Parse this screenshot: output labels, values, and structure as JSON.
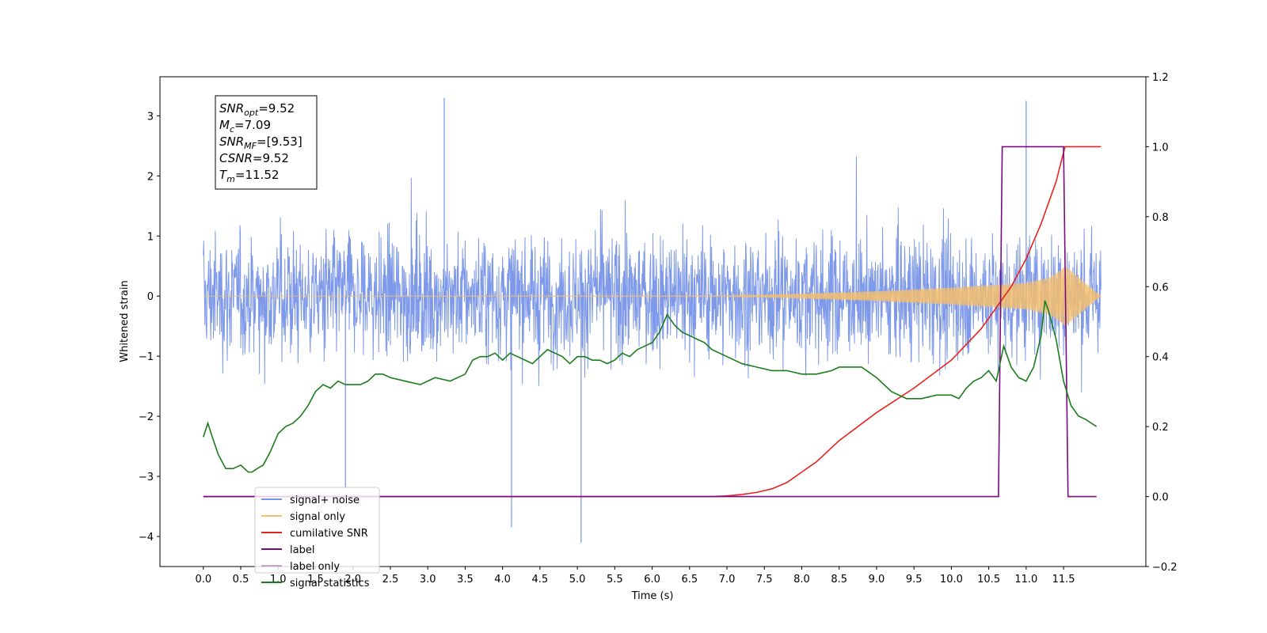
{
  "chart_data": {
    "type": "line",
    "xlabel": "Time (s)",
    "ylabel": "Whitened strain",
    "xlim": [
      -0.58,
      12.6
    ],
    "ylim": [
      -4.5,
      3.65
    ],
    "y2lim": [
      -0.2,
      1.2
    ],
    "x_ticks": [
      "0.0",
      "0.5",
      "1.0",
      "1.5",
      "2.0",
      "2.5",
      "3.0",
      "3.5",
      "4.0",
      "4.5",
      "5.0",
      "5.5",
      "6.0",
      "6.5",
      "7.0",
      "7.5",
      "8.0",
      "8.5",
      "9.0",
      "9.5",
      "10.0",
      "10.5",
      "11.0",
      "11.5"
    ],
    "y_ticks": [
      "3",
      "2",
      "1",
      "0",
      "−1",
      "−2",
      "−3",
      "−4"
    ],
    "y2_ticks": [
      "1.2",
      "1.0",
      "0.8",
      "0.6",
      "0.4",
      "0.2",
      "0.0",
      "−0.2"
    ],
    "grid": false,
    "legend_position": "lower-left",
    "annotation": {
      "lines": [
        {
          "base": "SNR",
          "sub": "opt",
          "value": "=9.52"
        },
        {
          "base": "M",
          "sub": "c",
          "value": "=7.09"
        },
        {
          "base": "SNR",
          "sub": "MF",
          "value": "=[9.53]"
        },
        {
          "base": "CSNR",
          "sub": "",
          "value": "=9.52"
        },
        {
          "base": "T",
          "sub": "m",
          "value": "=11.52"
        }
      ]
    },
    "series": [
      {
        "name": "signal+ noise",
        "color": "#7793e8",
        "axis": "left",
        "noise": {
          "x_start": 0.0,
          "x_end": 12.0,
          "typical_amplitude": 1.3,
          "min": -4.1,
          "max": 3.3
        },
        "peaks": [
          [
            3.22,
            3.3
          ],
          [
            11.0,
            3.25
          ],
          [
            5.05,
            -4.1
          ],
          [
            4.12,
            -3.85
          ],
          [
            1.9,
            -3.2
          ]
        ]
      },
      {
        "name": "signal only",
        "color": "#f5be6c",
        "axis": "left",
        "envelope": {
          "x": [
            0.0,
            7.0,
            8.0,
            9.0,
            10.0,
            10.5,
            11.0,
            11.3,
            11.45,
            11.52,
            12.0
          ],
          "amp": [
            0.0,
            0.005,
            0.04,
            0.08,
            0.14,
            0.18,
            0.22,
            0.3,
            0.42,
            0.5,
            0.0
          ]
        }
      },
      {
        "name": "cumilative SNR",
        "color": "#e8231f",
        "axis": "right",
        "x": [
          0.0,
          6.8,
          7.0,
          7.2,
          7.4,
          7.6,
          7.8,
          8.0,
          8.2,
          8.5,
          9.0,
          9.5,
          10.0,
          10.4,
          10.8,
          11.0,
          11.2,
          11.4,
          11.52,
          12.0
        ],
        "y": [
          0.0,
          0.0,
          0.002,
          0.006,
          0.012,
          0.022,
          0.04,
          0.07,
          0.1,
          0.16,
          0.24,
          0.31,
          0.39,
          0.48,
          0.6,
          0.68,
          0.78,
          0.9,
          1.0,
          1.0
        ]
      },
      {
        "name": "label",
        "color": "#7a0a80",
        "axis": "right",
        "x": [
          0.0,
          10.63,
          10.68,
          11.5,
          11.56,
          11.94
        ],
        "y": [
          0.0,
          0.0,
          1.0,
          1.0,
          0.0,
          0.0
        ]
      },
      {
        "name": "label only",
        "color": "#7a0a80",
        "axis": "right",
        "x": [],
        "y": []
      },
      {
        "name": "signal statistics",
        "color": "#1b7d1b",
        "axis": "right",
        "x": [
          0.0,
          0.06,
          0.12,
          0.2,
          0.3,
          0.4,
          0.5,
          0.6,
          0.65,
          0.72,
          0.8,
          0.9,
          1.0,
          1.1,
          1.2,
          1.3,
          1.4,
          1.5,
          1.6,
          1.7,
          1.8,
          1.9,
          2.0,
          2.1,
          2.2,
          2.3,
          2.4,
          2.5,
          2.7,
          2.9,
          3.0,
          3.1,
          3.3,
          3.5,
          3.6,
          3.7,
          3.8,
          3.9,
          4.0,
          4.1,
          4.2,
          4.3,
          4.4,
          4.5,
          4.6,
          4.7,
          4.8,
          4.9,
          5.0,
          5.1,
          5.2,
          5.3,
          5.4,
          5.5,
          5.6,
          5.7,
          5.8,
          5.9,
          6.0,
          6.1,
          6.2,
          6.3,
          6.4,
          6.5,
          6.6,
          6.7,
          6.8,
          6.9,
          7.0,
          7.2,
          7.4,
          7.6,
          7.8,
          8.0,
          8.2,
          8.4,
          8.5,
          8.6,
          8.8,
          9.0,
          9.2,
          9.4,
          9.6,
          9.8,
          10.0,
          10.1,
          10.2,
          10.3,
          10.4,
          10.5,
          10.6,
          10.7,
          10.8,
          10.9,
          11.0,
          11.1,
          11.2,
          11.25,
          11.3,
          11.4,
          11.5,
          11.6,
          11.7,
          11.8,
          11.94
        ],
        "y": [
          0.17,
          0.21,
          0.17,
          0.12,
          0.08,
          0.08,
          0.09,
          0.07,
          0.07,
          0.08,
          0.09,
          0.13,
          0.18,
          0.2,
          0.21,
          0.23,
          0.26,
          0.3,
          0.32,
          0.31,
          0.33,
          0.32,
          0.32,
          0.32,
          0.33,
          0.35,
          0.35,
          0.34,
          0.33,
          0.32,
          0.33,
          0.34,
          0.33,
          0.35,
          0.39,
          0.4,
          0.4,
          0.41,
          0.39,
          0.41,
          0.4,
          0.39,
          0.38,
          0.4,
          0.42,
          0.41,
          0.4,
          0.38,
          0.4,
          0.4,
          0.39,
          0.39,
          0.38,
          0.39,
          0.41,
          0.4,
          0.42,
          0.43,
          0.44,
          0.47,
          0.52,
          0.49,
          0.47,
          0.46,
          0.45,
          0.44,
          0.42,
          0.41,
          0.4,
          0.38,
          0.37,
          0.36,
          0.36,
          0.35,
          0.35,
          0.36,
          0.37,
          0.37,
          0.37,
          0.34,
          0.3,
          0.28,
          0.28,
          0.29,
          0.29,
          0.28,
          0.31,
          0.33,
          0.34,
          0.36,
          0.33,
          0.43,
          0.37,
          0.34,
          0.33,
          0.37,
          0.46,
          0.56,
          0.53,
          0.45,
          0.33,
          0.26,
          0.23,
          0.22,
          0.2
        ]
      }
    ]
  }
}
